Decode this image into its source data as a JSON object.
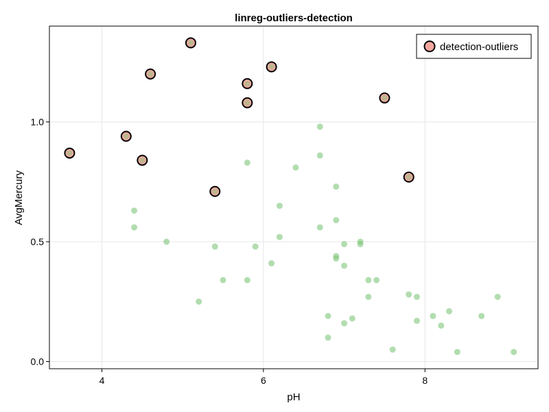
{
  "chart_data": {
    "type": "scatter",
    "title": "linreg-outliers-detection",
    "xlabel": "pH",
    "ylabel": "AvgMercury",
    "xlim": [
      3.35,
      9.4
    ],
    "ylim": [
      -0.03,
      1.4
    ],
    "xticks": [
      4,
      6,
      8
    ],
    "xtick_labels": [
      "4",
      "6",
      "8"
    ],
    "yticks": [
      0.0,
      0.5,
      1.0
    ],
    "ytick_labels": [
      "0.0",
      "0.5",
      "1.0"
    ],
    "grid": true,
    "legend": {
      "position": "top-right",
      "entries": [
        "detection-outliers"
      ]
    },
    "series": [
      {
        "color": "#7fc77a",
        "points": [
          [
            4.4,
            0.63
          ],
          [
            4.4,
            0.56
          ],
          [
            4.8,
            0.5
          ],
          [
            5.2,
            0.25
          ],
          [
            5.4,
            0.48
          ],
          [
            5.5,
            0.34
          ],
          [
            5.8,
            0.83
          ],
          [
            5.8,
            0.34
          ],
          [
            5.9,
            0.48
          ],
          [
            6.1,
            0.41
          ],
          [
            6.2,
            0.65
          ],
          [
            6.2,
            0.52
          ],
          [
            6.4,
            0.81
          ],
          [
            6.7,
            0.98
          ],
          [
            6.7,
            0.86
          ],
          [
            6.7,
            0.56
          ],
          [
            6.8,
            0.19
          ],
          [
            6.8,
            0.1
          ],
          [
            6.9,
            0.73
          ],
          [
            6.9,
            0.59
          ],
          [
            6.9,
            0.44
          ],
          [
            6.9,
            0.43
          ],
          [
            7.0,
            0.49
          ],
          [
            7.0,
            0.4
          ],
          [
            7.0,
            0.16
          ],
          [
            7.1,
            0.18
          ],
          [
            7.2,
            0.5
          ],
          [
            7.2,
            0.49
          ],
          [
            7.3,
            0.34
          ],
          [
            7.3,
            0.27
          ],
          [
            7.4,
            0.34
          ],
          [
            7.6,
            0.05
          ],
          [
            7.8,
            0.28
          ],
          [
            7.9,
            0.27
          ],
          [
            7.9,
            0.17
          ],
          [
            8.1,
            0.19
          ],
          [
            8.2,
            0.15
          ],
          [
            8.3,
            0.21
          ],
          [
            8.4,
            0.04
          ],
          [
            8.7,
            0.19
          ],
          [
            8.9,
            0.27
          ],
          [
            9.1,
            0.04
          ]
        ]
      },
      {
        "name": "detection-outliers",
        "color": "#f4a6a0",
        "stroke": "#000000",
        "points": [
          [
            3.6,
            0.87
          ],
          [
            4.3,
            0.94
          ],
          [
            4.5,
            0.84
          ],
          [
            4.6,
            1.2
          ],
          [
            5.1,
            1.33
          ],
          [
            5.4,
            0.71
          ],
          [
            5.8,
            1.16
          ],
          [
            5.8,
            1.08
          ],
          [
            6.1,
            1.23
          ],
          [
            7.5,
            1.1
          ],
          [
            7.8,
            0.77
          ]
        ]
      }
    ]
  }
}
